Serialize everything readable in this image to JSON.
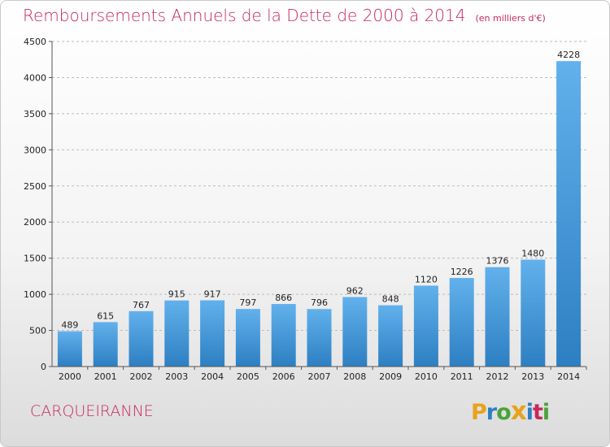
{
  "header": {
    "title": "Remboursements Annuels de la Dette de 2000 à 2014",
    "unit": "(en milliers d'€)"
  },
  "footer": {
    "commune": "CARQUEIRANNE",
    "brand": {
      "letters": [
        "P",
        "r",
        "o",
        "x",
        "i",
        "t",
        "i"
      ],
      "colors": [
        "#e8a21c",
        "#2e7fc1",
        "#4aa33a",
        "#e8a21c",
        "#2e7fc1",
        "#c8285c",
        "#4aa33a"
      ]
    }
  },
  "colors": {
    "bar_top": "#62b1ec",
    "bar_bottom": "#2d7fc2",
    "grid": "#bcbcbc",
    "axis": "#555555"
  },
  "chart_data": {
    "type": "bar",
    "title": "Remboursements Annuels de la Dette de 2000 à 2014",
    "subtitle": "(en milliers d'€)",
    "xlabel": "",
    "ylabel": "",
    "ylim": [
      0,
      4500
    ],
    "yticks": [
      0,
      500,
      1000,
      1500,
      2000,
      2500,
      3000,
      3500,
      4000,
      4500
    ],
    "grid": true,
    "categories": [
      "2000",
      "2001",
      "2002",
      "2003",
      "2004",
      "2005",
      "2006",
      "2007",
      "2008",
      "2009",
      "2010",
      "2011",
      "2012",
      "2013",
      "2014"
    ],
    "values": [
      489,
      615,
      767,
      915,
      917,
      797,
      866,
      796,
      962,
      848,
      1120,
      1226,
      1376,
      1480,
      4228
    ]
  }
}
